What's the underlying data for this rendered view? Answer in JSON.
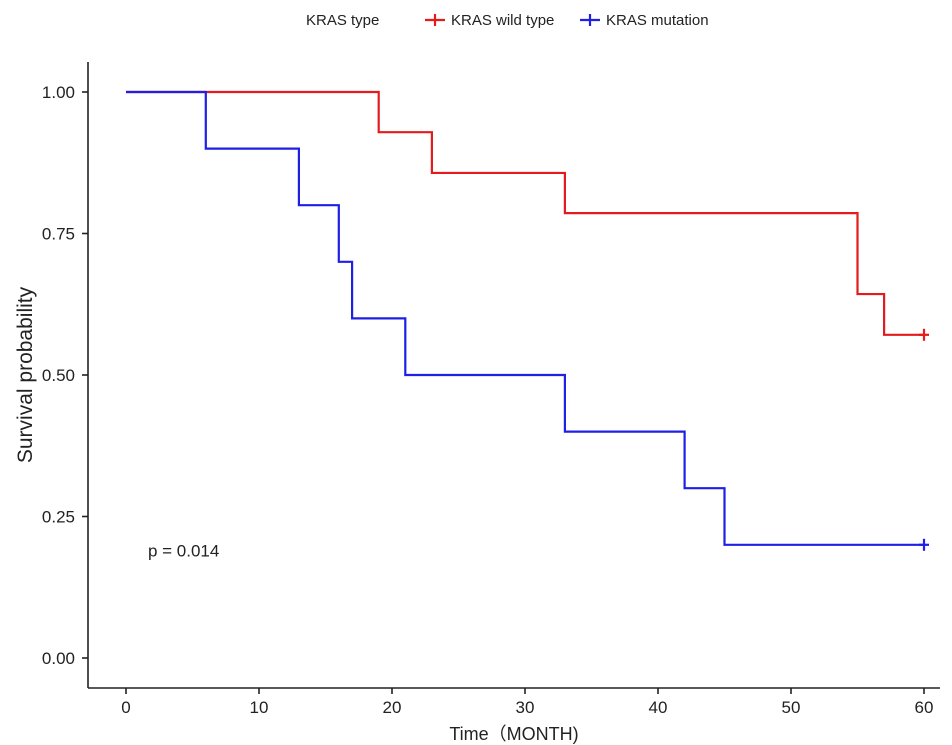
{
  "chart_data": {
    "type": "line",
    "subtype": "kaplan-meier survival step plot",
    "title": "",
    "xlabel": "Time（MONTH)",
    "ylabel": "Survival probability",
    "xlim": [
      0,
      60
    ],
    "ylim": [
      0,
      1
    ],
    "x_ticks": [
      0,
      10,
      20,
      30,
      40,
      50,
      60
    ],
    "x_tick_labels": [
      "0",
      "10",
      "20",
      "30",
      "40",
      "50",
      "60"
    ],
    "y_ticks": [
      0,
      0.25,
      0.5,
      0.75,
      1.0
    ],
    "y_tick_labels": [
      "0.00",
      "0.25",
      "0.50",
      "0.75",
      "1.00"
    ],
    "grid": false,
    "legend": {
      "title": "KRAS type",
      "position": "top",
      "entries": [
        "KRAS wild type",
        "KRAS mutation"
      ]
    },
    "annotations": [
      {
        "text": "p = 0.014",
        "x": 1.5,
        "y": 0.19
      }
    ],
    "series": [
      {
        "name": "KRAS wild type",
        "color": "#e41a1c",
        "steps": [
          [
            0,
            1.0
          ],
          [
            19,
            0.929
          ],
          [
            23,
            0.857
          ],
          [
            33,
            0.786
          ],
          [
            55,
            0.643
          ],
          [
            57,
            0.571
          ]
        ],
        "end_x": 60,
        "censor_marks": [
          [
            60,
            0.571
          ]
        ]
      },
      {
        "name": "KRAS mutation",
        "color": "#1f1fe6",
        "steps": [
          [
            0,
            1.0
          ],
          [
            6,
            0.9
          ],
          [
            13,
            0.8
          ],
          [
            16,
            0.7
          ],
          [
            17,
            0.6
          ],
          [
            21,
            0.5
          ],
          [
            33,
            0.4
          ],
          [
            42,
            0.3
          ],
          [
            45,
            0.2
          ]
        ],
        "end_x": 60,
        "censor_marks": [
          [
            60,
            0.2
          ]
        ]
      }
    ]
  }
}
